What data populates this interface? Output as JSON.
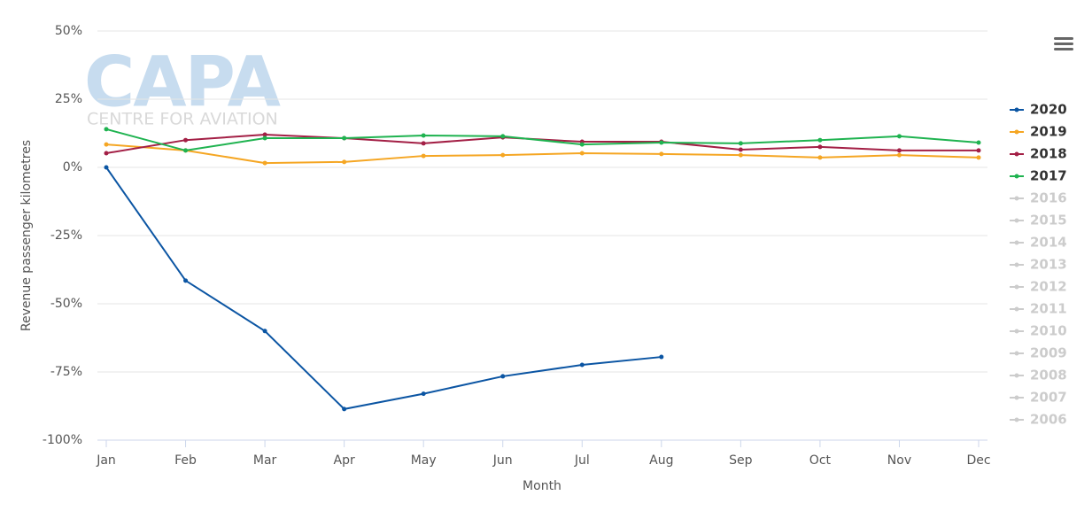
{
  "chart_data": {
    "type": "line",
    "watermark": {
      "title": "CAPA",
      "subtitle": "CENTRE FOR AVIATION"
    },
    "y_label": "Revenue passenger kilometres",
    "x_label": "Month",
    "categories": [
      "Jan",
      "Feb",
      "Mar",
      "Apr",
      "May",
      "Jun",
      "Jul",
      "Aug",
      "Sep",
      "Oct",
      "Nov",
      "Dec"
    ],
    "ylim": [
      -100,
      50
    ],
    "yticks": [
      {
        "value": -100,
        "label": "-100%"
      },
      {
        "value": -75,
        "label": "-75%"
      },
      {
        "value": -50,
        "label": "-50%"
      },
      {
        "value": -25,
        "label": "-25%"
      },
      {
        "value": 0,
        "label": "0%"
      },
      {
        "value": 25,
        "label": "25%"
      },
      {
        "value": 50,
        "label": "50%"
      }
    ],
    "grid": true,
    "legend": "right",
    "series": [
      {
        "name": "2020",
        "color": "#0b55a3",
        "hidden": false,
        "values": [
          0,
          -41.5,
          -60,
          -88.6,
          -83,
          -76.6,
          -72.4,
          -69.5,
          null,
          null,
          null,
          null
        ]
      },
      {
        "name": "2019",
        "color": "#f5a623",
        "hidden": false,
        "values": [
          8.4,
          6.2,
          1.6,
          2,
          4.2,
          4.5,
          5.2,
          4.9,
          4.5,
          3.6,
          4.5,
          3.6
        ]
      },
      {
        "name": "2018",
        "color": "#a31f45",
        "hidden": false,
        "values": [
          5.2,
          10,
          12,
          10.7,
          8.8,
          11,
          9.4,
          9.4,
          6.5,
          7.5,
          6.2,
          6.2
        ]
      },
      {
        "name": "2017",
        "color": "#1fb350",
        "hidden": false,
        "values": [
          14,
          6.2,
          10.7,
          10.7,
          11.7,
          11.4,
          8.4,
          9.1,
          8.8,
          10,
          11.4,
          9.1
        ]
      },
      {
        "name": "2016",
        "color": "#cccccc",
        "hidden": true,
        "values": [
          null,
          null,
          null,
          null,
          null,
          null,
          null,
          null,
          null,
          null,
          null,
          null
        ]
      },
      {
        "name": "2015",
        "color": "#cccccc",
        "hidden": true,
        "values": [
          null,
          null,
          null,
          null,
          null,
          null,
          null,
          null,
          null,
          null,
          null,
          null
        ]
      },
      {
        "name": "2014",
        "color": "#cccccc",
        "hidden": true,
        "values": [
          null,
          null,
          null,
          null,
          null,
          null,
          null,
          null,
          null,
          null,
          null,
          null
        ]
      },
      {
        "name": "2013",
        "color": "#cccccc",
        "hidden": true,
        "values": [
          null,
          null,
          null,
          null,
          null,
          null,
          null,
          null,
          null,
          null,
          null,
          null
        ]
      },
      {
        "name": "2012",
        "color": "#cccccc",
        "hidden": true,
        "values": [
          null,
          null,
          null,
          null,
          null,
          null,
          null,
          null,
          null,
          null,
          null,
          null
        ]
      },
      {
        "name": "2011",
        "color": "#cccccc",
        "hidden": true,
        "values": [
          null,
          null,
          null,
          null,
          null,
          null,
          null,
          null,
          null,
          null,
          null,
          null
        ]
      },
      {
        "name": "2010",
        "color": "#cccccc",
        "hidden": true,
        "values": [
          null,
          null,
          null,
          null,
          null,
          null,
          null,
          null,
          null,
          null,
          null,
          null
        ]
      },
      {
        "name": "2009",
        "color": "#cccccc",
        "hidden": true,
        "values": [
          null,
          null,
          null,
          null,
          null,
          null,
          null,
          null,
          null,
          null,
          null,
          null
        ]
      },
      {
        "name": "2008",
        "color": "#cccccc",
        "hidden": true,
        "values": [
          null,
          null,
          null,
          null,
          null,
          null,
          null,
          null,
          null,
          null,
          null,
          null
        ]
      },
      {
        "name": "2007",
        "color": "#cccccc",
        "hidden": true,
        "values": [
          null,
          null,
          null,
          null,
          null,
          null,
          null,
          null,
          null,
          null,
          null,
          null
        ]
      },
      {
        "name": "2006",
        "color": "#cccccc",
        "hidden": true,
        "values": [
          null,
          null,
          null,
          null,
          null,
          null,
          null,
          null,
          null,
          null,
          null,
          null
        ]
      }
    ]
  }
}
